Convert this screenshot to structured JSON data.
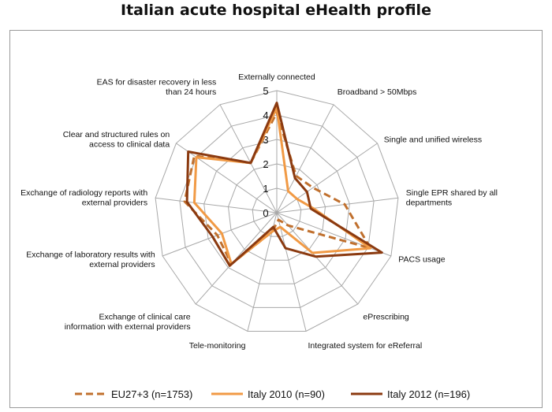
{
  "chart_data": {
    "type": "radar",
    "title": "Italian acute hospital eHealth profile",
    "axes": [
      "Externally connected",
      "Broadband > 50Mbps",
      "Single and unified wireless",
      "Single EPR shared by all departments",
      "PACS usage",
      "ePrescribing",
      "Integrated system for eReferral",
      "Tele-monitoring",
      "Exchange of clinical care information with external providers",
      "Exchange of laboratory results with external providers",
      "Exchange of radiology reports with external providers",
      "Clear and structured rules on access to clinical data",
      "EAS for disaster recovery in less than 24 hours"
    ],
    "axis_label_lines": [
      [
        "Externally connected"
      ],
      [
        "Broadband > 50Mbps"
      ],
      [
        "Single and unified wireless"
      ],
      [
        "Single EPR shared by all",
        "departments"
      ],
      [
        "PACS usage"
      ],
      [
        "ePrescribing"
      ],
      [
        "Integrated system for eReferral"
      ],
      [
        "Tele-monitoring"
      ],
      [
        "Exchange of clinical care",
        "information with external providers"
      ],
      [
        "Exchange of laboratory results with",
        "external providers"
      ],
      [
        "Exchange of radiology reports with",
        "external providers"
      ],
      [
        "Clear and structured rules on",
        "access to clinical data"
      ],
      [
        "EAS for disaster recovery in less",
        "than 24 hours"
      ]
    ],
    "rlim": [
      0,
      5
    ],
    "ticks": [
      "0",
      "1",
      "2",
      "3",
      "4",
      "5"
    ],
    "series": [
      {
        "name": "EU27+3 (n=1753)",
        "style": "dashed",
        "color": "#c0702e",
        "values": [
          4.1,
          1.7,
          1.8,
          2.8,
          4.1,
          0.7,
          0.3,
          0.8,
          2.8,
          2.6,
          3.8,
          4.1,
          2.3
        ]
      },
      {
        "name": "Italy 2010 (n=90)",
        "style": "solid",
        "color": "#f19a45",
        "values": [
          4.3,
          1.0,
          1.0,
          1.5,
          4.1,
          2.2,
          0.6,
          0.8,
          2.8,
          2.4,
          3.4,
          4.0,
          2.3
        ]
      },
      {
        "name": "Italy 2012 (n=196)",
        "style": "solid",
        "color": "#8b3a10",
        "values": [
          4.5,
          1.6,
          1.5,
          1.4,
          4.6,
          2.4,
          1.5,
          0.6,
          2.9,
          2.8,
          3.7,
          4.4,
          2.3
        ]
      }
    ],
    "grid": true,
    "legend": "bottom"
  }
}
